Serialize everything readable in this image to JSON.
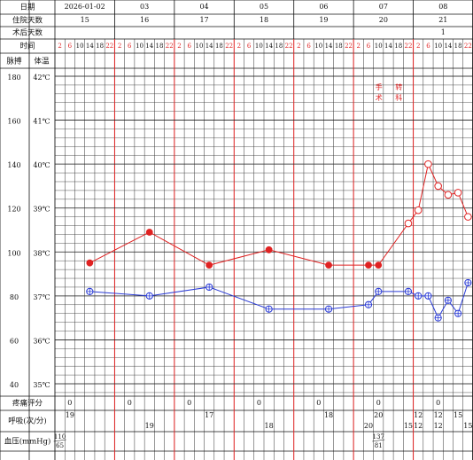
{
  "chart_data": {
    "type": "line",
    "row_labels": {
      "date": "日期",
      "hospital_day": "住院天数",
      "postop_day": "术后天数",
      "time": "时间",
      "pulse": "脉搏",
      "temperature": "体温",
      "pain": "疼痛评分",
      "respiration": "呼吸(次/分)",
      "blood_pressure": "血压(mmHg)"
    },
    "days": [
      "2026-01-02",
      "03",
      "04",
      "05",
      "06",
      "07",
      "08"
    ],
    "hospital_days": [
      15,
      16,
      17,
      18,
      19,
      20,
      21
    ],
    "postop_days": [
      null,
      null,
      null,
      null,
      null,
      null,
      1
    ],
    "xlim": [
      0,
      168
    ],
    "xticks": [
      2,
      6,
      10,
      14,
      18,
      22,
      {
        "value": 26,
        "label": "2"
      },
      {
        "value": 30,
        "label": "6"
      },
      {
        "value": 34,
        "label": "10"
      },
      {
        "value": 38,
        "label": "14"
      },
      {
        "value": 42,
        "label": "18"
      },
      {
        "value": 46,
        "label": "22"
      },
      {
        "value": 50,
        "label": "2"
      },
      {
        "value": 54,
        "label": "6"
      },
      {
        "value": 58,
        "label": "10"
      },
      {
        "value": 62,
        "label": "14"
      },
      {
        "value": 66,
        "label": "18"
      },
      {
        "value": 70,
        "label": "22"
      },
      {
        "value": 74,
        "label": "2"
      },
      {
        "value": 78,
        "label": "6"
      },
      {
        "value": 82,
        "label": "10"
      },
      {
        "value": 86,
        "label": "14"
      },
      {
        "value": 90,
        "label": "18"
      },
      {
        "value": 94,
        "label": "22"
      },
      {
        "value": 98,
        "label": "2"
      },
      {
        "value": 102,
        "label": "6"
      },
      {
        "value": 106,
        "label": "10"
      },
      {
        "value": 110,
        "label": "14"
      },
      {
        "value": 114,
        "label": "18"
      },
      {
        "value": 118,
        "label": "22"
      },
      {
        "value": 122,
        "label": "2"
      },
      {
        "value": 126,
        "label": "6"
      },
      {
        "value": 130,
        "label": "10"
      },
      {
        "value": 134,
        "label": "14"
      },
      {
        "value": 138,
        "label": "18"
      },
      {
        "value": 142,
        "label": "22"
      },
      {
        "value": 146,
        "label": "2"
      },
      {
        "value": 150,
        "label": "6"
      },
      {
        "value": 154,
        "label": "10"
      },
      {
        "value": 158,
        "label": "14"
      },
      {
        "value": 162,
        "label": "18"
      },
      {
        "value": 166,
        "label": "22"
      }
    ],
    "ylim": [
      35,
      42
    ],
    "yticks": [
      {
        "value": 35,
        "label": "35℃"
      },
      {
        "value": 36,
        "label": "36℃"
      },
      {
        "value": 37,
        "label": "37℃"
      },
      {
        "value": 38,
        "label": "38℃"
      },
      {
        "value": 39,
        "label": "39℃"
      },
      {
        "value": 40,
        "label": "40℃"
      },
      {
        "value": 41,
        "label": "41℃"
      },
      {
        "value": 42,
        "label": "42℃"
      }
    ],
    "y2lim": [
      40,
      180
    ],
    "y2ticks": [
      40,
      60,
      80,
      100,
      120,
      140,
      160,
      180
    ],
    "x": [
      14,
      38,
      62,
      86,
      110,
      126,
      130,
      142,
      146,
      150,
      154,
      158,
      162,
      166
    ],
    "series": [
      {
        "color": "#2a3bd6",
        "marker": "circle-cross",
        "values": [
          37.1,
          37.0,
          37.2,
          36.7,
          36.7,
          36.8,
          37.1,
          37.1,
          37.0,
          37.0,
          36.5,
          36.9,
          36.6,
          37.3
        ]
      },
      {
        "color": "#e02222",
        "axis": "y2",
        "markers": [
          "filled",
          "filled",
          "filled",
          "filled",
          "filled",
          "filled",
          "filled",
          "hollow",
          "hollow",
          "hollow",
          "hollow",
          "hollow",
          "hollow",
          "hollow"
        ],
        "values": [
          95,
          109,
          94,
          101,
          94,
          94,
          94,
          113,
          119,
          140,
          130,
          126,
          127,
          116
        ]
      }
    ],
    "annotations": [
      {
        "text": "手术",
        "x": 130
      },
      {
        "text": "转科",
        "x": 138
      }
    ],
    "pain": {
      "x": [
        6,
        30,
        54,
        82,
        106,
        130,
        154
      ],
      "values": [
        0,
        0,
        0,
        0,
        0,
        0,
        0
      ]
    },
    "respiration": {
      "x": [
        6,
        38,
        62,
        86,
        110,
        126,
        130,
        142,
        146,
        146,
        154,
        154,
        162,
        166
      ],
      "values": [
        19,
        19,
        17,
        18,
        18,
        20,
        20,
        15,
        12,
        12,
        12,
        12,
        15,
        15
      ],
      "levels": [
        "high",
        "low",
        "high",
        "low",
        "high",
        "low",
        "high",
        "low",
        "high",
        "low",
        "high",
        "low",
        "high",
        "low"
      ]
    },
    "blood_pressure": {
      "x": [
        2,
        130
      ],
      "systolic": [
        110,
        137
      ],
      "diastolic": [
        65,
        81
      ]
    },
    "grid": true
  }
}
